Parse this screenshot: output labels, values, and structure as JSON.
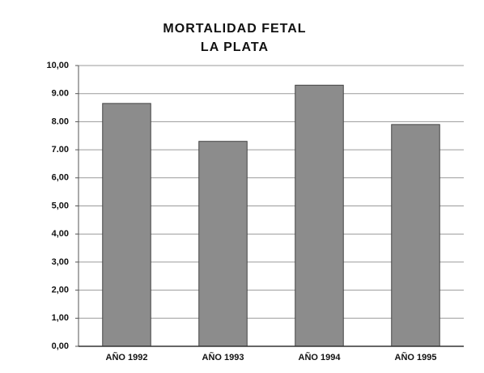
{
  "chart_data": {
    "type": "bar",
    "title": "MORTALIDAD FETAL",
    "subtitle": "LA PLATA",
    "categories": [
      "AÑO 1992",
      "AÑO 1993",
      "AÑO 1994",
      "AÑO 1995"
    ],
    "values": [
      8.65,
      7.3,
      9.3,
      7.9
    ],
    "color": "#8c8c8c",
    "ylim": [
      0,
      10
    ],
    "yticks": [
      {
        "value": 0,
        "label": "0,00"
      },
      {
        "value": 1,
        "label": "1,00"
      },
      {
        "value": 2,
        "label": "2,00"
      },
      {
        "value": 3,
        "label": "3,00"
      },
      {
        "value": 4,
        "label": "4,00"
      },
      {
        "value": 5,
        "label": "5,00"
      },
      {
        "value": 6,
        "label": "6,00"
      },
      {
        "value": 7,
        "label": "7.00"
      },
      {
        "value": 8,
        "label": "8.00"
      },
      {
        "value": 9,
        "label": "9.00"
      },
      {
        "value": 10,
        "label": "10,00"
      }
    ],
    "grid": true
  }
}
